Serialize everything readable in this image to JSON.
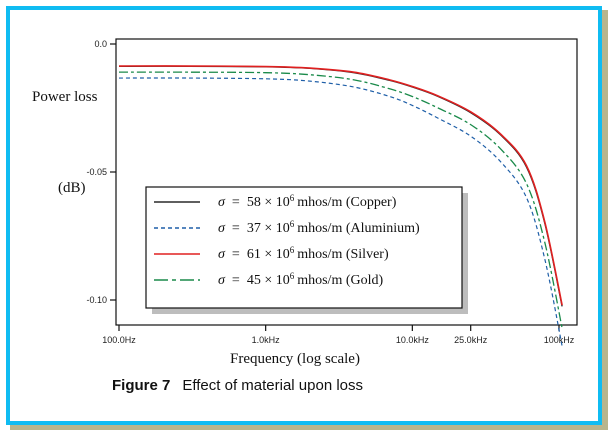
{
  "figure": {
    "caption_label": "Figure 7",
    "caption_text": "Effect of material upon loss"
  },
  "colors": {
    "frame_border": "#0fbcf2",
    "frame_shadow": "#b8b58c"
  },
  "chart_data": {
    "type": "line",
    "title": "",
    "xlabel": "Frequency (log scale)",
    "ylabel_lines": [
      "Power loss",
      "(dB)"
    ],
    "x_scale": "log",
    "xlim": [
      100,
      110000
    ],
    "ylim": [
      -0.126,
      0.002
    ],
    "x_ticks": [
      {
        "value": 100,
        "label": "100.0Hz"
      },
      {
        "value": 1000,
        "label": "1.0kHz"
      },
      {
        "value": 10000,
        "label": "10.0kHz"
      },
      {
        "value": 25000,
        "label": "25.0kHz"
      },
      {
        "value": 100000,
        "label": "100kHz"
      }
    ],
    "y_ticks": [
      {
        "value": 0.0,
        "label": "0.0"
      },
      {
        "value": -0.05,
        "label": "-0.05"
      },
      {
        "value": -0.1,
        "label": "-0.10"
      }
    ],
    "grid": false,
    "legend_position": "center",
    "x": [
      100,
      300,
      1000,
      2000,
      4000,
      7000,
      10000,
      15000,
      25000,
      40000,
      60000,
      80000,
      105000
    ],
    "series": [
      {
        "name": "Copper",
        "label_sigma": "σ",
        "label_eq": "=",
        "label_value": "58 × 10",
        "label_exp": "6",
        "label_unit": "mhos/m (Copper)",
        "color": "#2a2a2a",
        "dash": "solid",
        "values": [
          -0.0087,
          -0.0087,
          -0.0089,
          -0.0095,
          -0.0112,
          -0.0142,
          -0.0168,
          -0.0205,
          -0.0268,
          -0.0355,
          -0.048,
          -0.07,
          -0.1025
        ]
      },
      {
        "name": "Aluminium",
        "label_sigma": "σ",
        "label_eq": "=",
        "label_value": "37 × 10",
        "label_exp": "6",
        "label_unit": "mhos/m (Aluminium)",
        "color": "#1f5fa8",
        "dash": "dashed",
        "values": [
          -0.0133,
          -0.0133,
          -0.0136,
          -0.0145,
          -0.0168,
          -0.0205,
          -0.024,
          -0.029,
          -0.036,
          -0.046,
          -0.06,
          -0.084,
          -0.118
        ]
      },
      {
        "name": "Silver",
        "label_sigma": "σ",
        "label_eq": "=",
        "label_value": "61 × 10",
        "label_exp": "6",
        "label_unit": "mhos/m (Silver)",
        "color": "#e02020",
        "dash": "solid",
        "values": [
          -0.0086,
          -0.0086,
          -0.0088,
          -0.0094,
          -0.011,
          -0.014,
          -0.0166,
          -0.0203,
          -0.0265,
          -0.0352,
          -0.0475,
          -0.0695,
          -0.102
        ]
      },
      {
        "name": "Gold",
        "label_sigma": "σ",
        "label_eq": "=",
        "label_value": "45 × 10",
        "label_exp": "6",
        "label_unit": "mhos/m (Gold)",
        "color": "#1a8a4a",
        "dash": "dashdot",
        "values": [
          -0.011,
          -0.011,
          -0.0112,
          -0.012,
          -0.014,
          -0.0175,
          -0.0205,
          -0.025,
          -0.0315,
          -0.041,
          -0.0545,
          -0.0775,
          -0.111
        ]
      }
    ]
  }
}
